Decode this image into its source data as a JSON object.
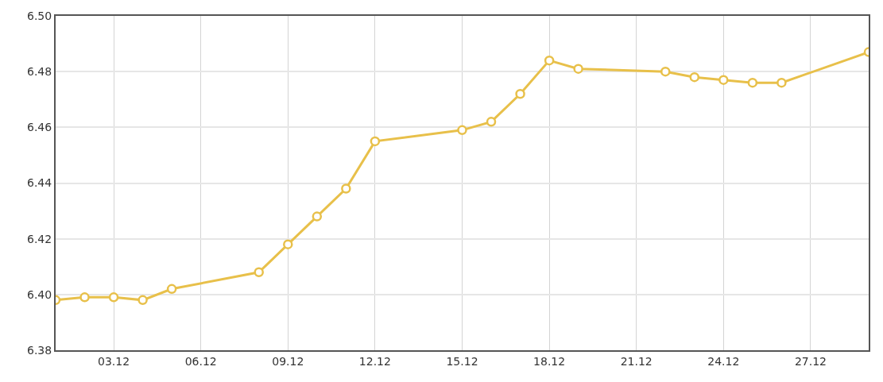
{
  "chart_data": {
    "type": "line",
    "x": [
      "--12-01",
      "--12-02",
      "--12-03",
      "--12-04",
      "--12-05",
      "--12-08",
      "--12-09",
      "--12-10",
      "--12-11",
      "--12-12",
      "--12-15",
      "--12-16",
      "--12-17",
      "--12-18",
      "--12-19",
      "--12-22",
      "--12-23",
      "--12-24",
      "--12-25",
      "--12-26",
      "--12-29"
    ],
    "series": [
      {
        "color": "#e8c04a",
        "values": [
          6.398,
          6.399,
          6.399,
          6.398,
          6.402,
          6.408,
          6.418,
          6.428,
          6.438,
          6.455,
          6.459,
          6.462,
          6.472,
          6.484,
          6.481,
          6.48,
          6.478,
          6.477,
          6.476,
          6.476,
          6.487
        ]
      }
    ],
    "xlim": [
      "--12-01",
      "--12-29"
    ],
    "xticks": [
      {
        "value": "--12-03",
        "label": "03.12"
      },
      {
        "value": "--12-06",
        "label": "06.12"
      },
      {
        "value": "--12-09",
        "label": "09.12"
      },
      {
        "value": "--12-12",
        "label": "12.12"
      },
      {
        "value": "--12-15",
        "label": "15.12"
      },
      {
        "value": "--12-18",
        "label": "18.12"
      },
      {
        "value": "--12-21",
        "label": "21.12"
      },
      {
        "value": "--12-24",
        "label": "24.12"
      },
      {
        "value": "--12-27",
        "label": "27.12"
      }
    ],
    "ylim": [
      6.38,
      6.5
    ],
    "yticks": [
      {
        "value": 6.38,
        "label": "6.38"
      },
      {
        "value": 6.4,
        "label": "6.40"
      },
      {
        "value": 6.42,
        "label": "6.42"
      },
      {
        "value": 6.44,
        "label": "6.44"
      },
      {
        "value": 6.46,
        "label": "6.46"
      },
      {
        "value": 6.48,
        "label": "6.48"
      },
      {
        "value": 6.5,
        "label": "6.50"
      }
    ],
    "grid": true,
    "marker": "circle",
    "line_style": "solid"
  }
}
